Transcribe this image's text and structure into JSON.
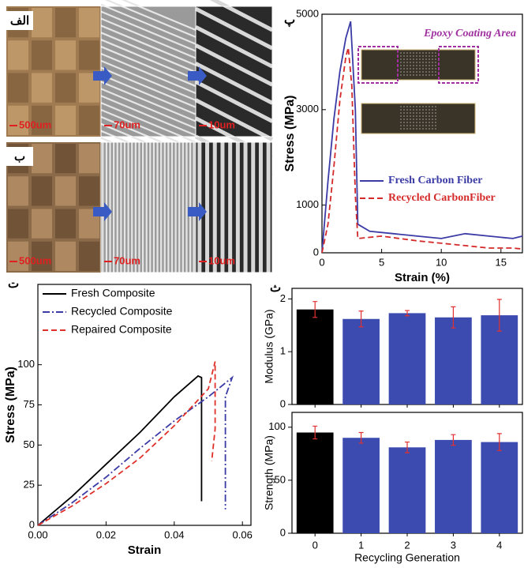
{
  "image_panels": [
    {
      "label": "الف",
      "scale_bars": [
        "500um",
        "70um",
        "10um"
      ]
    },
    {
      "label": "ب",
      "scale_bars": [
        "500um",
        "70um",
        "10um"
      ]
    }
  ],
  "chart_data": [
    {
      "type": "line",
      "label": "پ",
      "xlabel": "Strain (%)",
      "ylabel": "Stress (MPa)",
      "annotation": "Epoxy Coating Area",
      "xlim": [
        0,
        16.8
      ],
      "ylim": [
        0,
        5000
      ],
      "xticks": [
        0,
        5,
        10,
        15
      ],
      "yticks": [
        0,
        1000,
        3000,
        5000
      ],
      "legend": "center-right",
      "series": [
        {
          "name": "Fresh Carbon Fiber",
          "color": "#3b3ba6",
          "dash": "solid",
          "x": [
            0,
            0.5,
            1,
            1.5,
            2,
            2.4,
            2.8,
            3,
            4,
            6,
            8,
            10,
            12,
            14,
            16,
            16.8
          ],
          "values": [
            0,
            1500,
            2800,
            3800,
            4500,
            4850,
            3000,
            600,
            450,
            400,
            350,
            300,
            400,
            350,
            300,
            350
          ]
        },
        {
          "name": "Recycled CarbonFiber",
          "color": "#d42a2a",
          "dash": "dashed",
          "x": [
            0,
            0.5,
            1,
            1.5,
            2,
            2.2,
            2.5,
            2.8,
            3,
            5,
            8,
            10,
            12,
            14,
            16,
            16.8
          ],
          "values": [
            0,
            600,
            1800,
            3200,
            4100,
            4300,
            3500,
            1200,
            300,
            350,
            250,
            200,
            150,
            100,
            100,
            80
          ]
        }
      ]
    },
    {
      "type": "line",
      "label": "ت",
      "xlabel": "Strain",
      "ylabel": "Stress (MPa)",
      "xlim": [
        0,
        0.0625
      ],
      "ylim": [
        0,
        150
      ],
      "xticks": [
        {
          "value": 0,
          "label": "0.00"
        },
        {
          "value": 0.02,
          "label": "0.02"
        },
        {
          "value": 0.04,
          "label": "0.04"
        },
        {
          "value": 0.06,
          "label": "0.06"
        }
      ],
      "yticks": [
        0,
        25,
        50,
        75,
        100
      ],
      "legend": "upper-left",
      "series": [
        {
          "name": "Fresh Composite",
          "color": "#000000",
          "dash": "solid",
          "x": [
            0,
            0.01,
            0.02,
            0.03,
            0.04,
            0.047,
            0.048,
            0.048
          ],
          "values": [
            0,
            18,
            38,
            58,
            80,
            93,
            92,
            15
          ]
        },
        {
          "name": "Recycled Composite",
          "color": "#3b3ba6",
          "dash": "dashdot",
          "x": [
            0,
            0.01,
            0.02,
            0.03,
            0.04,
            0.05,
            0.057,
            0.055,
            0.055
          ],
          "values": [
            0,
            14,
            30,
            48,
            65,
            80,
            92,
            80,
            10
          ]
        },
        {
          "name": "Repaired Composite",
          "color": "#e0302a",
          "dash": "dashed",
          "x": [
            0,
            0.01,
            0.02,
            0.03,
            0.04,
            0.05,
            0.052,
            0.052,
            0.051
          ],
          "values": [
            0,
            12,
            26,
            42,
            62,
            85,
            102,
            60,
            40
          ]
        }
      ]
    },
    {
      "type": "bar",
      "label": "ث",
      "ylabel": "Modulus (GPa)",
      "ylim": [
        0,
        2.2
      ],
      "yticks": [
        0,
        1,
        2
      ],
      "values": [
        1.8,
        1.62,
        1.73,
        1.65,
        1.69
      ],
      "errors": [
        0.15,
        0.15,
        0.05,
        0.2,
        0.3
      ],
      "colors": [
        "#000000",
        "#3b4bb0",
        "#3b4bb0",
        "#3b4bb0",
        "#3b4bb0"
      ],
      "error_color": "#e03030"
    },
    {
      "type": "bar",
      "ylabel": "Strength (MPa)",
      "xlabel": "Recycling Generation",
      "ylim": [
        0,
        114
      ],
      "yticks": [
        0,
        50,
        100
      ],
      "categories": [
        "0",
        "1",
        "2",
        "3",
        "4"
      ],
      "values": [
        95,
        90,
        81,
        88,
        86
      ],
      "errors": [
        6,
        5,
        5,
        5,
        8
      ],
      "colors": [
        "#000000",
        "#3b4bb0",
        "#3b4bb0",
        "#3b4bb0",
        "#3b4bb0"
      ],
      "error_color": "#e03030"
    }
  ]
}
